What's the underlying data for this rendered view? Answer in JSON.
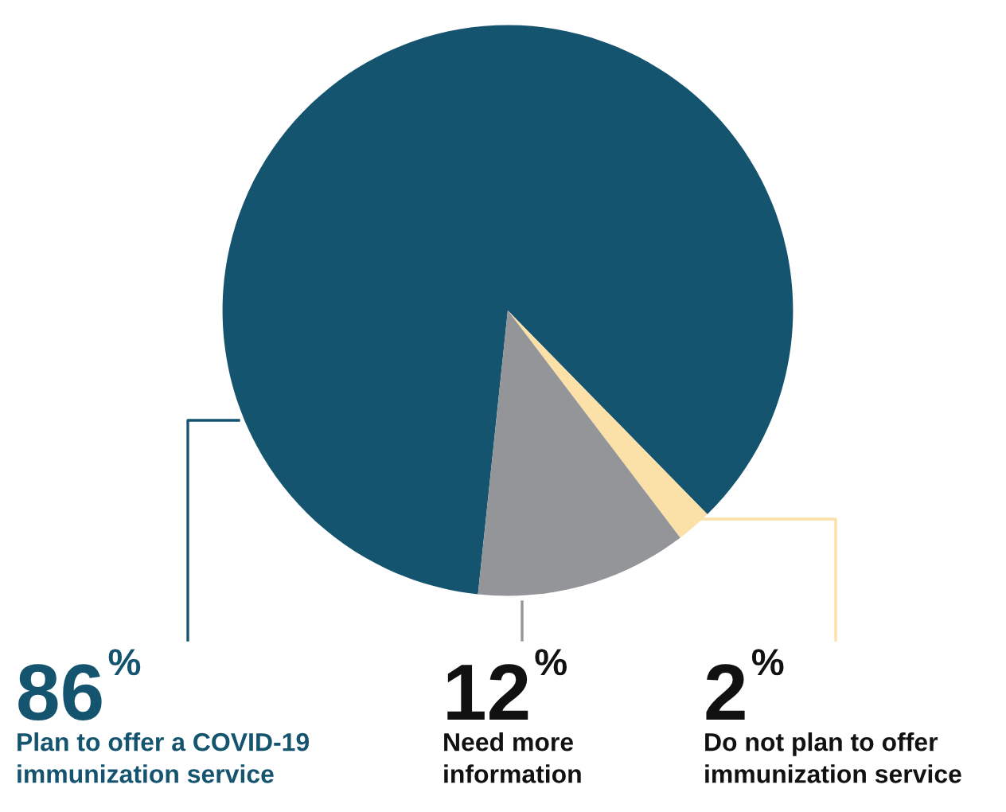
{
  "chart_data": {
    "type": "pie",
    "categories": [
      "Plan to offer a COVID-19\nimmunization service",
      "Do not plan to offer\nimmunization service",
      "Need more\ninformation"
    ],
    "values": [
      86,
      2,
      12
    ],
    "colors": [
      "#15546f",
      "#fbe0a8",
      "#939598"
    ],
    "value_labels": [
      "86%",
      "2%",
      "12%"
    ],
    "legend": false
  }
}
